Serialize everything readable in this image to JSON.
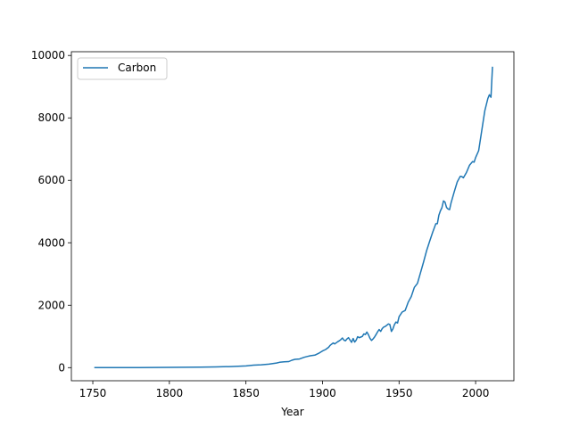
{
  "chart_data": {
    "type": "line",
    "title": "",
    "xlabel": "Year",
    "ylabel": "",
    "xlim": [
      1736,
      2025
    ],
    "ylim": [
      -420,
      10120
    ],
    "x_ticks": [
      1750,
      1800,
      1850,
      1900,
      1950,
      2000
    ],
    "y_ticks": [
      0,
      2000,
      4000,
      6000,
      8000,
      10000
    ],
    "grid": false,
    "legend_position": "upper-left",
    "series": [
      {
        "name": "Carbon",
        "color": "#1f77b4",
        "x": [
          1751,
          1760,
          1770,
          1780,
          1790,
          1800,
          1810,
          1820,
          1830,
          1840,
          1850,
          1855,
          1860,
          1865,
          1870,
          1872,
          1875,
          1878,
          1880,
          1882,
          1885,
          1888,
          1890,
          1892,
          1895,
          1898,
          1900,
          1902,
          1904,
          1905,
          1907,
          1908,
          1910,
          1911,
          1912,
          1913,
          1914,
          1915,
          1916,
          1917,
          1918,
          1919,
          1920,
          1921,
          1922,
          1923,
          1924,
          1925,
          1926,
          1927,
          1928,
          1929,
          1930,
          1931,
          1932,
          1933,
          1934,
          1935,
          1936,
          1937,
          1938,
          1939,
          1940,
          1941,
          1942,
          1943,
          1944,
          1945,
          1946,
          1947,
          1948,
          1949,
          1950,
          1952,
          1954,
          1956,
          1958,
          1960,
          1962,
          1964,
          1966,
          1968,
          1970,
          1972,
          1974,
          1975,
          1976,
          1977,
          1978,
          1979,
          1980,
          1981,
          1982,
          1983,
          1984,
          1986,
          1988,
          1990,
          1991,
          1992,
          1994,
          1996,
          1998,
          1999,
          2000,
          2002,
          2004,
          2006,
          2008,
          2009,
          2010,
          2011
        ],
        "y": [
          3,
          3,
          3,
          4,
          5,
          8,
          10,
          14,
          24,
          33,
          54,
          80,
          91,
          110,
          147,
          170,
          188,
          195,
          236,
          265,
          278,
          330,
          356,
          380,
          400,
          470,
          534,
          580,
          650,
          713,
          790,
          760,
          830,
          860,
          900,
          950,
          880,
          860,
          920,
          960,
          880,
          810,
          935,
          820,
          880,
          990,
          960,
          980,
          1000,
          1080,
          1060,
          1140,
          1050,
          940,
          870,
          920,
          980,
          1060,
          1150,
          1220,
          1160,
          1250,
          1300,
          1320,
          1360,
          1400,
          1380,
          1160,
          1240,
          1380,
          1460,
          1430,
          1630,
          1780,
          1830,
          2100,
          2280,
          2570,
          2700,
          3040,
          3380,
          3750,
          4050,
          4340,
          4610,
          4610,
          4880,
          5020,
          5120,
          5340,
          5300,
          5130,
          5080,
          5060,
          5280,
          5630,
          5950,
          6130,
          6120,
          6080,
          6250,
          6480,
          6600,
          6580,
          6730,
          6950,
          7600,
          8230,
          8620,
          8740,
          8660,
          9640
        ]
      }
    ]
  }
}
